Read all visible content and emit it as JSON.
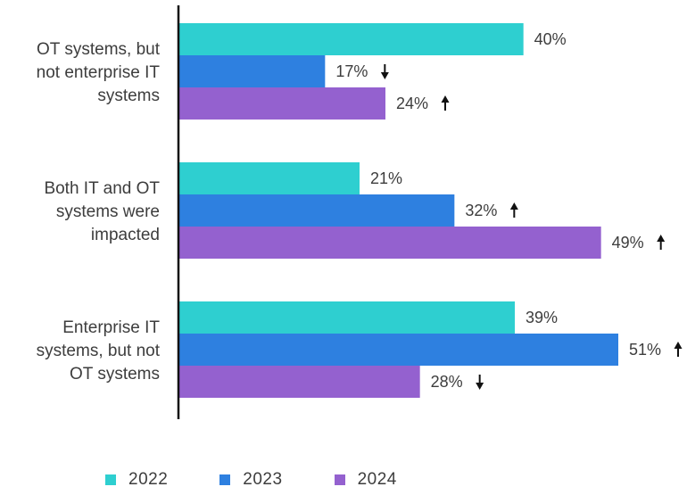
{
  "chart_data": {
    "type": "bar",
    "orientation": "horizontal",
    "categories": [
      [
        "OT systems, but",
        "not enterprise IT",
        "systems"
      ],
      [
        "Both IT and OT",
        "systems were",
        "impacted"
      ],
      [
        "Enterprise IT",
        "systems, but not",
        "OT systems"
      ]
    ],
    "series": [
      {
        "name": "2022",
        "color": "#2ecfd0",
        "values": [
          40,
          21,
          39
        ],
        "labels": [
          "40%",
          "21%",
          "39%"
        ],
        "trend": [
          "",
          "",
          ""
        ]
      },
      {
        "name": "2023",
        "color": "#2e80e0",
        "values": [
          17,
          32,
          51
        ],
        "labels": [
          "17%",
          "32%",
          "51%"
        ],
        "trend": [
          "down",
          "up",
          "up"
        ]
      },
      {
        "name": "2024",
        "color": "#9461cf",
        "values": [
          24,
          49,
          28
        ],
        "labels": [
          "24%",
          "49%",
          "28%"
        ],
        "trend": [
          "up",
          "up",
          "down"
        ]
      }
    ],
    "xlim": [
      0,
      51
    ],
    "grid": false,
    "legend_position": "bottom"
  },
  "legend": {
    "items": [
      {
        "label": "2022",
        "color": "#2ecfd0"
      },
      {
        "label": "2023",
        "color": "#2e80e0"
      },
      {
        "label": "2024",
        "color": "#9461cf"
      }
    ]
  }
}
